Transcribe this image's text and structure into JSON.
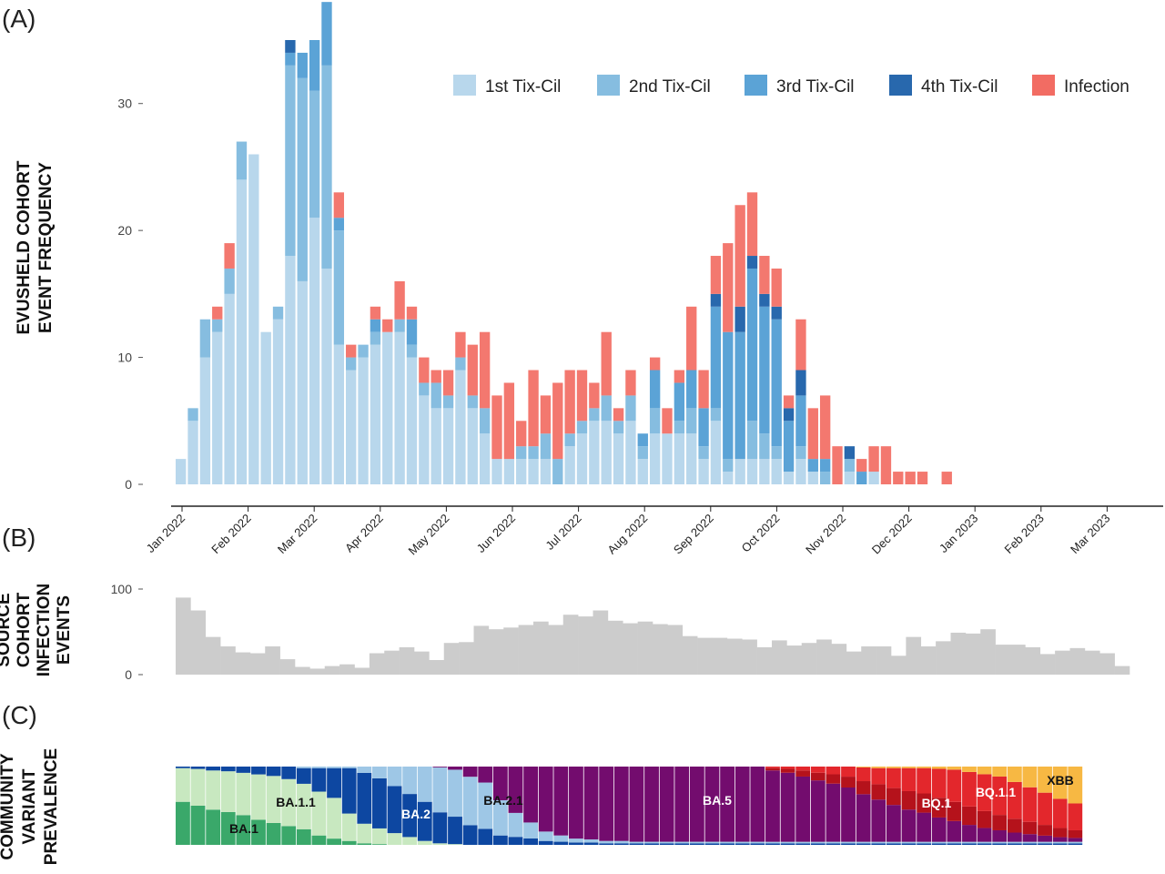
{
  "panels": {
    "a": "(A)",
    "b": "(B)",
    "c": "(C)"
  },
  "chart_data": [
    {
      "type": "bar",
      "stacked": true,
      "ylabel_lines": [
        "EVUSHELD COHORT",
        "EVENT FREQUENCY"
      ],
      "yticks": [
        0,
        10,
        20,
        30
      ],
      "ylim": [
        0,
        35
      ],
      "x_date_labels": [
        "Jan 2022",
        "Feb 2022",
        "Mar 2022",
        "Apr 2022",
        "May 2022",
        "Jun 2022",
        "Jul 2022",
        "Aug 2022",
        "Sep 2022",
        "Oct 2022",
        "Nov 2022",
        "Dec 2022",
        "Jan 2023",
        "Feb 2023",
        "Mar 2023"
      ],
      "legend_position": "top-right",
      "series": [
        {
          "name": "1st Tix-Cil",
          "color": "#b8d7ec",
          "values": [
            2,
            5,
            10,
            12,
            15,
            24,
            26,
            12,
            13,
            18,
            16,
            21,
            17,
            11,
            9,
            10,
            11,
            12,
            12,
            10,
            7,
            6,
            6,
            9,
            6,
            4,
            2,
            2,
            2,
            2,
            2,
            0,
            3,
            4,
            5,
            5,
            4,
            5,
            2,
            4,
            4,
            4,
            4,
            2,
            5,
            1,
            2,
            2,
            2,
            2,
            1,
            2,
            1,
            0,
            0,
            1,
            0,
            1,
            0,
            0,
            0,
            0,
            0,
            0,
            0,
            0,
            0,
            0,
            0,
            0,
            0,
            0,
            0,
            0,
            0,
            0,
            0,
            0,
            0,
            0,
            0
          ]
        },
        {
          "name": "2nd Tix-Cil",
          "color": "#86bde0",
          "values": [
            0,
            1,
            3,
            1,
            2,
            3,
            0,
            0,
            1,
            15,
            16,
            10,
            16,
            9,
            1,
            1,
            1,
            0,
            1,
            1,
            1,
            2,
            1,
            1,
            1,
            2,
            0,
            0,
            1,
            1,
            2,
            2,
            1,
            1,
            1,
            2,
            1,
            2,
            1,
            2,
            0,
            1,
            2,
            1,
            1,
            1,
            0,
            3,
            2,
            1,
            0,
            1,
            0,
            1,
            0,
            1,
            0,
            0,
            0,
            0,
            0,
            0,
            0,
            0,
            0,
            0,
            0,
            0,
            0,
            0,
            0,
            0,
            0,
            0,
            0,
            0,
            0,
            0,
            0,
            0,
            0
          ]
        },
        {
          "name": "3rd Tix-Cil",
          "color": "#5ba3d6",
          "values": [
            0,
            0,
            0,
            0,
            0,
            0,
            0,
            0,
            0,
            1,
            2,
            4,
            5,
            1,
            0,
            0,
            1,
            0,
            0,
            2,
            0,
            0,
            0,
            0,
            0,
            0,
            0,
            0,
            0,
            0,
            0,
            0,
            0,
            0,
            0,
            0,
            0,
            0,
            1,
            3,
            0,
            3,
            3,
            3,
            8,
            10,
            10,
            12,
            10,
            10,
            4,
            4,
            1,
            1,
            0,
            0,
            1,
            0,
            0,
            0,
            0,
            0,
            0,
            0,
            0,
            0,
            0,
            0,
            0,
            0,
            0,
            0,
            0,
            0,
            0,
            0,
            0,
            0,
            0,
            0,
            0
          ]
        },
        {
          "name": "4th Tix-Cil",
          "color": "#2868ad",
          "values": [
            0,
            0,
            0,
            0,
            0,
            0,
            0,
            0,
            0,
            1,
            0,
            0,
            0,
            0,
            0,
            0,
            0,
            0,
            0,
            0,
            0,
            0,
            0,
            0,
            0,
            0,
            0,
            0,
            0,
            0,
            0,
            0,
            0,
            0,
            0,
            0,
            0,
            0,
            0,
            0,
            0,
            0,
            0,
            0,
            1,
            0,
            2,
            1,
            1,
            1,
            1,
            2,
            0,
            0,
            0,
            1,
            0,
            0,
            0,
            0,
            0,
            0,
            0,
            0,
            0,
            0,
            0,
            0,
            0,
            0,
            0,
            0,
            0,
            0,
            0,
            0,
            0,
            0,
            0,
            0,
            0
          ]
        },
        {
          "name": "Infection",
          "color": "#f26c63",
          "values": [
            0,
            0,
            0,
            1,
            2,
            0,
            0,
            0,
            0,
            0,
            0,
            0,
            0,
            2,
            1,
            0,
            1,
            1,
            3,
            1,
            2,
            1,
            2,
            2,
            4,
            6,
            5,
            6,
            2,
            6,
            3,
            6,
            5,
            4,
            2,
            5,
            1,
            2,
            0,
            1,
            2,
            1,
            5,
            3,
            3,
            7,
            8,
            5,
            3,
            3,
            1,
            4,
            4,
            5,
            3,
            0,
            1,
            2,
            3,
            1,
            1,
            1,
            0,
            1,
            0,
            0,
            0,
            0,
            0,
            0,
            0,
            0,
            0,
            0,
            0,
            0,
            0,
            0,
            0,
            0,
            0
          ]
        }
      ]
    },
    {
      "type": "bar",
      "ylabel_lines": [
        "SOURCE",
        "COHORT",
        "INFECTION",
        "EVENTS"
      ],
      "yticks": [
        0,
        100
      ],
      "ylim": [
        0,
        100
      ],
      "color": "#cccccc",
      "values": [
        90,
        75,
        44,
        33,
        26,
        25,
        33,
        18,
        9,
        7,
        10,
        12,
        8,
        25,
        28,
        32,
        27,
        17,
        37,
        38,
        57,
        53,
        55,
        58,
        62,
        58,
        70,
        68,
        75,
        63,
        60,
        62,
        59,
        58,
        45,
        43,
        43,
        42,
        41,
        32,
        40,
        34,
        37,
        41,
        36,
        27,
        33,
        33,
        22,
        44,
        33,
        39,
        49,
        48,
        53,
        35,
        35,
        32,
        24,
        28,
        31,
        28,
        25,
        10
      ]
    },
    {
      "type": "area",
      "ylabel_lines": [
        "COMMUNITY",
        "VARIANT",
        "PREVALENCE"
      ],
      "variant_labels": [
        "BA.1",
        "BA.1.1",
        "BA.2",
        "BA.2.1",
        "BA.5",
        "BQ.1",
        "BQ.1.1",
        "XBB"
      ],
      "series": [
        {
          "name": "BA.1",
          "color": "#3aa86a",
          "values": [
            0.55,
            0.5,
            0.45,
            0.42,
            0.38,
            0.32,
            0.28,
            0.24,
            0.2,
            0.12,
            0.08,
            0.05,
            0.02,
            0.01,
            0,
            0,
            0,
            0,
            0,
            0,
            0,
            0,
            0,
            0,
            0,
            0,
            0,
            0,
            0,
            0,
            0,
            0,
            0,
            0,
            0,
            0,
            0,
            0,
            0,
            0,
            0,
            0,
            0,
            0,
            0,
            0,
            0,
            0,
            0,
            0,
            0,
            0,
            0,
            0,
            0,
            0,
            0,
            0,
            0,
            0
          ]
        },
        {
          "name": "BA.1.1",
          "color": "#c8e8c0",
          "values": [
            0.43,
            0.47,
            0.5,
            0.52,
            0.54,
            0.58,
            0.6,
            0.6,
            0.58,
            0.56,
            0.52,
            0.35,
            0.25,
            0.2,
            0.15,
            0.1,
            0.05,
            0.02,
            0.01,
            0,
            0,
            0,
            0,
            0,
            0,
            0,
            0,
            0,
            0,
            0,
            0,
            0,
            0,
            0,
            0,
            0,
            0,
            0,
            0,
            0,
            0,
            0,
            0,
            0,
            0,
            0,
            0,
            0,
            0,
            0,
            0,
            0,
            0,
            0,
            0,
            0,
            0,
            0,
            0,
            0
          ]
        },
        {
          "name": "BA.2",
          "color": "#0d47a1",
          "values": [
            0.02,
            0.03,
            0.05,
            0.06,
            0.08,
            0.1,
            0.12,
            0.16,
            0.2,
            0.3,
            0.38,
            0.58,
            0.65,
            0.64,
            0.6,
            0.55,
            0.5,
            0.4,
            0.35,
            0.25,
            0.2,
            0.12,
            0.1,
            0.08,
            0.05,
            0.04,
            0.03,
            0.03,
            0.02,
            0.02,
            0.02,
            0.02,
            0.02,
            0.02,
            0.02,
            0.02,
            0.02,
            0.02,
            0.02,
            0.02,
            0.02,
            0.02,
            0.02,
            0.02,
            0.02,
            0.02,
            0.02,
            0.02,
            0.02,
            0.02,
            0.02,
            0.02,
            0.02,
            0.02,
            0.02,
            0.02,
            0.02,
            0.02,
            0.02,
            0.02
          ]
        },
        {
          "name": "BA.2.1",
          "color": "#9ec7e6",
          "values": [
            0,
            0,
            0,
            0,
            0,
            0,
            0,
            0,
            0.02,
            0.02,
            0.02,
            0.02,
            0.08,
            0.15,
            0.25,
            0.35,
            0.45,
            0.58,
            0.6,
            0.62,
            0.58,
            0.45,
            0.3,
            0.2,
            0.12,
            0.08,
            0.05,
            0.04,
            0.03,
            0.03,
            0.02,
            0.02,
            0.02,
            0.02,
            0.02,
            0.02,
            0.02,
            0.02,
            0.02,
            0.02,
            0.02,
            0.02,
            0.02,
            0.02,
            0.02,
            0.02,
            0.02,
            0.02,
            0.02,
            0.02,
            0.02,
            0.02,
            0.02,
            0.02,
            0.02,
            0.02,
            0.02,
            0.02,
            0.02,
            0.02
          ]
        },
        {
          "name": "BA.5",
          "color": "#730c6e",
          "values": [
            0,
            0,
            0,
            0,
            0,
            0,
            0,
            0,
            0,
            0,
            0,
            0,
            0,
            0,
            0,
            0,
            0,
            0.01,
            0.04,
            0.13,
            0.2,
            0.43,
            0.58,
            0.7,
            0.83,
            0.88,
            0.92,
            0.93,
            0.95,
            0.95,
            0.96,
            0.96,
            0.96,
            0.96,
            0.96,
            0.96,
            0.96,
            0.96,
            0.96,
            0.93,
            0.9,
            0.85,
            0.8,
            0.75,
            0.7,
            0.62,
            0.55,
            0.48,
            0.42,
            0.38,
            0.32,
            0.27,
            0.22,
            0.18,
            0.15,
            0.12,
            0.1,
            0.08,
            0.06,
            0.05
          ]
        },
        {
          "name": "BQ.1",
          "color": "#b5121b",
          "values": [
            0,
            0,
            0,
            0,
            0,
            0,
            0,
            0,
            0,
            0,
            0,
            0,
            0,
            0,
            0,
            0,
            0,
            0,
            0,
            0,
            0,
            0,
            0,
            0,
            0,
            0,
            0,
            0,
            0,
            0,
            0,
            0,
            0,
            0,
            0,
            0,
            0,
            0,
            0,
            0.03,
            0.05,
            0.08,
            0.1,
            0.12,
            0.14,
            0.17,
            0.2,
            0.22,
            0.24,
            0.25,
            0.26,
            0.25,
            0.24,
            0.22,
            0.2,
            0.18,
            0.16,
            0.14,
            0.12,
            0.1
          ]
        },
        {
          "name": "BQ.1.1",
          "color": "#e3272c",
          "values": [
            0,
            0,
            0,
            0,
            0,
            0,
            0,
            0,
            0,
            0,
            0,
            0,
            0,
            0,
            0,
            0,
            0,
            0,
            0,
            0,
            0,
            0,
            0,
            0,
            0,
            0,
            0,
            0,
            0,
            0,
            0,
            0,
            0,
            0,
            0,
            0,
            0,
            0,
            0,
            0.02,
            0.03,
            0.05,
            0.08,
            0.1,
            0.13,
            0.18,
            0.21,
            0.26,
            0.3,
            0.33,
            0.38,
            0.42,
            0.45,
            0.48,
            0.5,
            0.48,
            0.45,
            0.42,
            0.38,
            0.35
          ]
        },
        {
          "name": "XBB",
          "color": "#f7b843",
          "values": [
            0,
            0,
            0,
            0,
            0,
            0,
            0,
            0,
            0,
            0,
            0,
            0,
            0,
            0,
            0,
            0,
            0,
            0,
            0,
            0,
            0,
            0,
            0,
            0,
            0,
            0,
            0,
            0,
            0,
            0,
            0,
            0,
            0,
            0,
            0,
            0,
            0,
            0,
            0,
            0,
            0,
            0,
            0,
            0,
            0,
            0.01,
            0.02,
            0.02,
            0.02,
            0.02,
            0.03,
            0.04,
            0.07,
            0.1,
            0.13,
            0.2,
            0.27,
            0.34,
            0.42,
            0.48
          ]
        }
      ]
    }
  ]
}
